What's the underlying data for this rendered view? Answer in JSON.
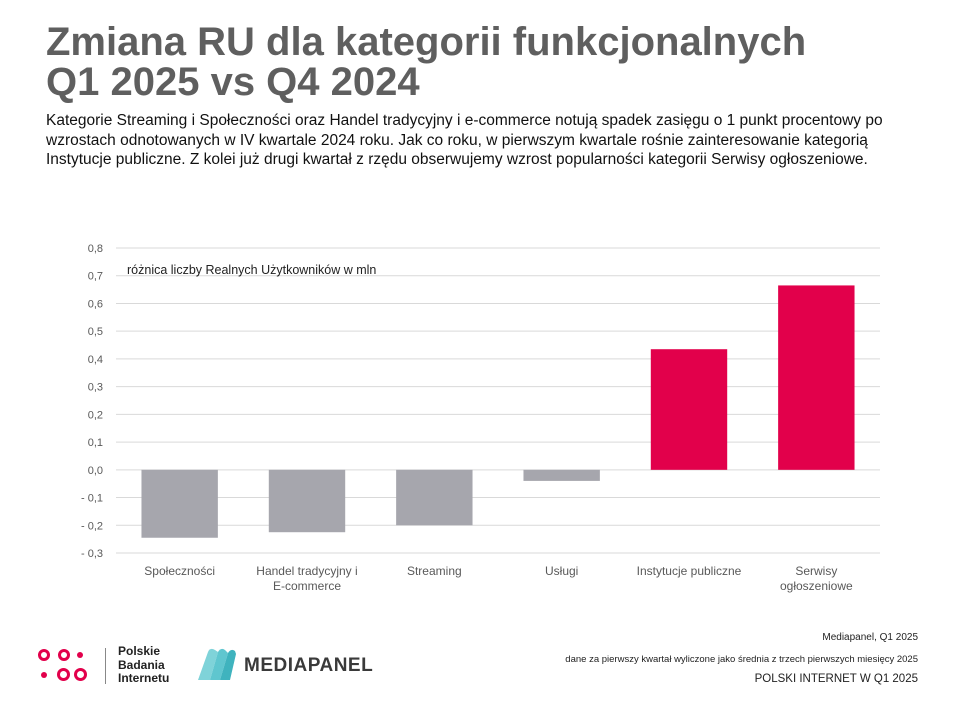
{
  "header": {
    "title_line1": "Zmiana RU dla kategorii funkcjonalnych",
    "title_line2": "Q1 2025 vs Q4 2024",
    "subtitle": "Kategorie Streaming i Społeczności oraz Handel tradycyjny i e-commerce notują spadek zasięgu o 1 punkt procentowy po wzrostach odnotowanych w IV kwartale 2024 roku. Jak co roku, w pierwszym kwartale rośnie zainteresowanie kategorią Instytucje publiczne. Z kolei już drugi kwartał z rzędu obserwujemy wzrost popularności kategorii Serwisy ogłoszeniowe."
  },
  "chart_data": {
    "type": "bar",
    "annotation": "różnica liczby Realnych Użytkowników w mln",
    "categories": [
      [
        "Społeczności"
      ],
      [
        "Handel tradycyjny i",
        "E-commerce"
      ],
      [
        "Streaming"
      ],
      [
        "Usługi"
      ],
      [
        "Instytucje publiczne"
      ],
      [
        "Serwisy",
        "ogłoszeniowe"
      ]
    ],
    "values": [
      -0.245,
      -0.225,
      -0.2,
      -0.04,
      0.435,
      0.665
    ],
    "colors": [
      "#a6a6ad",
      "#a6a6ad",
      "#a6a6ad",
      "#a6a6ad",
      "#e2004b",
      "#e2004b"
    ],
    "yticks": [
      "0,8",
      "0,7",
      "0,6",
      "0,5",
      "0,4",
      "0,3",
      "0,2",
      "0,1",
      "0,0",
      "- 0,1",
      "- 0,2",
      "- 0,3"
    ],
    "ylim": [
      -0.3,
      0.8
    ],
    "grid": true,
    "legend": "none"
  },
  "footer": {
    "pbi_line1": "Polskie",
    "pbi_line2": "Badania",
    "pbi_line3": "Internetu",
    "mediapanel_logo": "MEDIAPANEL",
    "source_line1": "Mediapanel, Q1 2025",
    "source_line2": "dane za pierwszy kwartał wyliczone jako średnia z trzech pierwszych miesięcy 2025",
    "source_line3": "POLSKI INTERNET W Q1 2025",
    "brand_colors": {
      "pbi_pink": "#e2004b",
      "mediapanel_teal": "#5fc6cf"
    }
  }
}
